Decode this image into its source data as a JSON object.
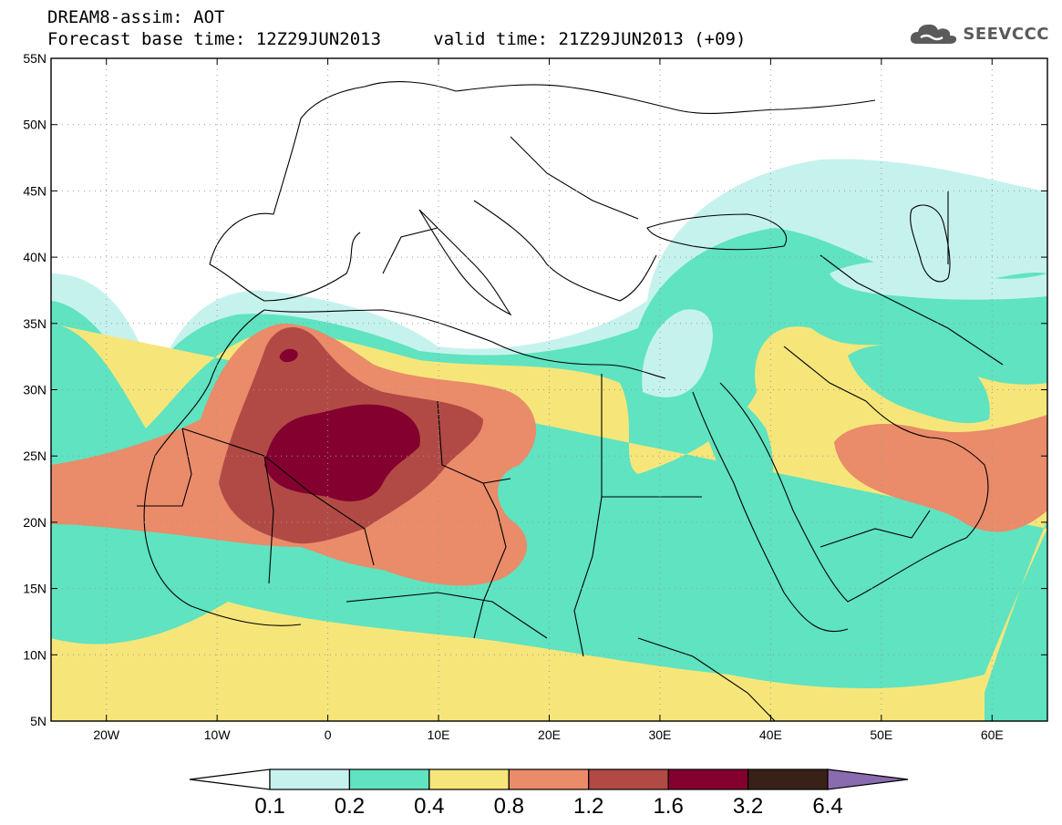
{
  "header": {
    "title": "DREAM8-assim: AOT",
    "base_label": "Forecast base time: 12Z29JUN2013",
    "valid_label": "valid time: 21Z29JUN2013 (+09)"
  },
  "logo": {
    "text": "SEEVCCC",
    "icon": "cloud-icon"
  },
  "map": {
    "lon_ticks": [
      {
        "lon": -20,
        "label": "20W"
      },
      {
        "lon": -10,
        "label": "10W"
      },
      {
        "lon": 0,
        "label": "0"
      },
      {
        "lon": 10,
        "label": "10E"
      },
      {
        "lon": 20,
        "label": "20E"
      },
      {
        "lon": 30,
        "label": "30E"
      },
      {
        "lon": 40,
        "label": "40E"
      },
      {
        "lon": 50,
        "label": "50E"
      },
      {
        "lon": 60,
        "label": "60E"
      }
    ],
    "lat_ticks": [
      {
        "lat": 55,
        "label": "55N"
      },
      {
        "lat": 50,
        "label": "50N"
      },
      {
        "lat": 45,
        "label": "45N"
      },
      {
        "lat": 40,
        "label": "40N"
      },
      {
        "lat": 35,
        "label": "35N"
      },
      {
        "lat": 30,
        "label": "30N"
      },
      {
        "lat": 25,
        "label": "25N"
      },
      {
        "lat": 20,
        "label": "20N"
      },
      {
        "lat": 15,
        "label": "15N"
      },
      {
        "lat": 10,
        "label": "10N"
      },
      {
        "lat": 5,
        "label": "5N"
      }
    ],
    "lon_range": [
      -25,
      65
    ],
    "lat_range": [
      5,
      55
    ],
    "grid": "dotted"
  },
  "colorbar": {
    "colors": [
      "#ffffff",
      "#c6f2ee",
      "#5fe3c0",
      "#f6e67a",
      "#ea8b6a",
      "#b14a45",
      "#83002f",
      "#3a2117",
      "#8a6bb0"
    ],
    "labels": [
      "0.1",
      "0.2",
      "0.4",
      "0.8",
      "1.2",
      "1.6",
      "3.2",
      "6.4"
    ]
  }
}
